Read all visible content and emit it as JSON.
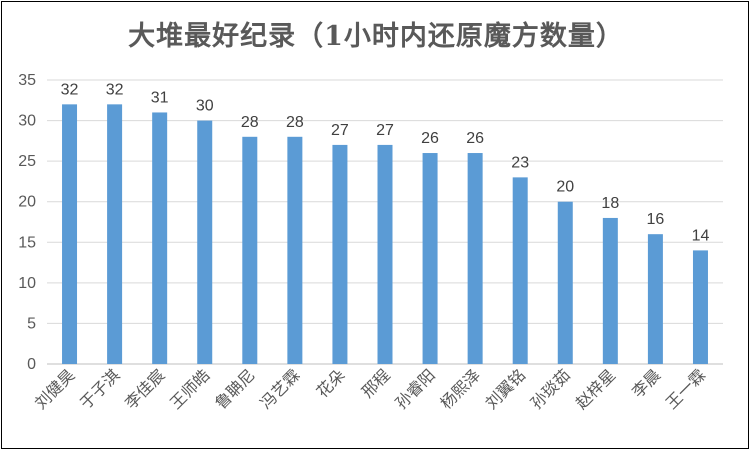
{
  "chart_data": {
    "type": "bar",
    "title": "大堆最好纪录（1小时内还原魔方数量）",
    "categories": [
      "刘健昊",
      "于子淇",
      "李佳宸",
      "王师皓",
      "鲁聃尼",
      "冯艺霖",
      "花朵",
      "邢程",
      "孙睿阳",
      "杨熙泽",
      "刘翼铭",
      "孙琰茹",
      "赵梓星",
      "李晨",
      "王一霖"
    ],
    "values": [
      32,
      32,
      31,
      30,
      28,
      28,
      27,
      27,
      26,
      26,
      23,
      20,
      18,
      16,
      14
    ],
    "ylim": [
      0,
      35
    ],
    "yticks": [
      0,
      5,
      10,
      15,
      20,
      25,
      30,
      35
    ],
    "grid": true,
    "bar_color": "#5B9BD5",
    "data_labels": true
  }
}
